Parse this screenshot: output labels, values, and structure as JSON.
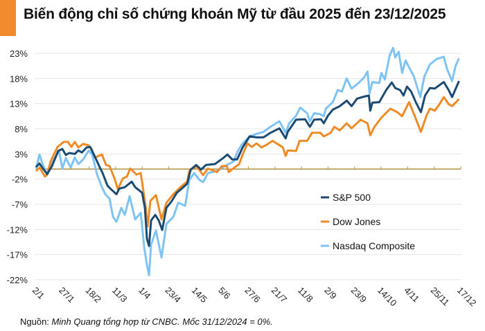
{
  "title": "Biến động chỉ số chứng khoán Mỹ từ đầu 2025 đến 23/12/2025",
  "source": {
    "prefix": "Nguồn: ",
    "text": "Minh Quang tổng hợp từ CNBC. Mốc 31/12/2024 = 0%."
  },
  "chart_data": {
    "type": "line",
    "title": "Biến động chỉ số chứng khoán Mỹ từ đầu 2025 đến 23/12/2025",
    "xlabel": "",
    "ylabel": "",
    "x_unit": "trading day index since 2/1/2025",
    "xlim": [
      0,
      245
    ],
    "ylim": [
      -22,
      23
    ],
    "yticks": [
      23,
      18,
      13,
      8,
      3,
      -2,
      -7,
      -12,
      -17,
      -22
    ],
    "ytick_labels": [
      "23%",
      "18%",
      "13%",
      "8%",
      "3%",
      "-2%",
      "-7%",
      "-12%",
      "-17%",
      "-22%"
    ],
    "xtick_labels": [
      "2/1",
      "27/1",
      "18/2",
      "11/3",
      "1/4",
      "23/4",
      "14/5",
      "5/6",
      "27/6",
      "21/7",
      "11/8",
      "2/9",
      "23/9",
      "14/10",
      "4/11",
      "25/11",
      "17/12"
    ],
    "baseline": 0,
    "grid": true,
    "legend_position": "right-middle",
    "series": [
      {
        "name": "Nasdaq Composite",
        "color": "#7DC3F5",
        "points": [
          [
            0,
            0.1
          ],
          [
            2,
            2.9
          ],
          [
            4,
            0.8
          ],
          [
            6.4,
            -1.2
          ],
          [
            10.4,
            1.9
          ],
          [
            13.2,
            3.7
          ],
          [
            15.2,
            0.1
          ],
          [
            17.2,
            2.2
          ],
          [
            20,
            0.3
          ],
          [
            22.4,
            2.3
          ],
          [
            24.4,
            1.0
          ],
          [
            27.2,
            1.9
          ],
          [
            30.4,
            3.7
          ],
          [
            32.4,
            2.9
          ],
          [
            35.2,
            -1.1
          ],
          [
            38,
            -3.6
          ],
          [
            40,
            -5.0
          ],
          [
            42.4,
            -5.9
          ],
          [
            44.4,
            -9.5
          ],
          [
            46.4,
            -10.5
          ],
          [
            49.2,
            -7.7
          ],
          [
            51.2,
            -9.1
          ],
          [
            54,
            -5.4
          ],
          [
            57.2,
            -10.0
          ],
          [
            60.4,
            -8.7
          ],
          [
            62.4,
            -15.5
          ],
          [
            64,
            -19.1
          ],
          [
            65.2,
            -21.1
          ],
          [
            66.4,
            -15.0
          ],
          [
            69.2,
            -12.2
          ],
          [
            72.4,
            -17.6
          ],
          [
            75.2,
            -10.9
          ],
          [
            79.2,
            -9.5
          ],
          [
            82,
            -6.7
          ],
          [
            86,
            -7.3
          ],
          [
            88.4,
            -2.2
          ],
          [
            91.2,
            -0.8
          ],
          [
            94.4,
            -2.2
          ],
          [
            96.4,
            -2.6
          ],
          [
            99.2,
            -0.8
          ],
          [
            104.4,
            -0.4
          ],
          [
            110,
            0.8
          ],
          [
            114,
            1.5
          ],
          [
            116.4,
            3.6
          ],
          [
            119.2,
            5.1
          ],
          [
            123.2,
            6.5
          ],
          [
            127.2,
            7.0
          ],
          [
            131.2,
            7.4
          ],
          [
            135.2,
            8.4
          ],
          [
            140.4,
            9.5
          ],
          [
            144,
            7.2
          ],
          [
            146,
            9.1
          ],
          [
            150,
            10.6
          ],
          [
            152.4,
            12.2
          ],
          [
            156.4,
            11.1
          ],
          [
            158,
            9.5
          ],
          [
            160.4,
            11.1
          ],
          [
            164,
            10.9
          ],
          [
            166,
            10.5
          ],
          [
            167.2,
            12.0
          ],
          [
            171.2,
            13.3
          ],
          [
            174,
            15.7
          ],
          [
            176.4,
            15.4
          ],
          [
            179.2,
            18.0
          ],
          [
            182,
            16.0
          ],
          [
            186,
            17.1
          ],
          [
            189.2,
            18.2
          ],
          [
            191.2,
            19.4
          ],
          [
            192.4,
            15.0
          ],
          [
            194,
            17.3
          ],
          [
            198,
            17.1
          ],
          [
            199.2,
            19.1
          ],
          [
            201.2,
            17.8
          ],
          [
            204,
            22.6
          ],
          [
            206,
            24.1
          ],
          [
            207.2,
            22.2
          ],
          [
            209.2,
            23.3
          ],
          [
            211.2,
            19.1
          ],
          [
            213.2,
            21.6
          ],
          [
            215.2,
            20.2
          ],
          [
            218,
            18.4
          ],
          [
            221.6,
            14.3
          ],
          [
            224,
            18.4
          ],
          [
            227.2,
            20.8
          ],
          [
            231.2,
            21.9
          ],
          [
            235.2,
            22.3
          ],
          [
            237.2,
            19.8
          ],
          [
            240,
            17.5
          ],
          [
            242,
            20.5
          ],
          [
            244,
            22.0
          ]
        ]
      },
      {
        "name": "Dow Jones",
        "color": "#F08A24",
        "points": [
          [
            0,
            -0.4
          ],
          [
            2,
            0.3
          ],
          [
            5.2,
            -1.5
          ],
          [
            6.4,
            -1.1
          ],
          [
            8.4,
            1.5
          ],
          [
            12.4,
            4.4
          ],
          [
            16,
            5.4
          ],
          [
            18.4,
            5.4
          ],
          [
            20.4,
            4.4
          ],
          [
            22.4,
            5.4
          ],
          [
            24.4,
            4.3
          ],
          [
            27.2,
            5.0
          ],
          [
            30.4,
            4.7
          ],
          [
            32,
            4.0
          ],
          [
            34,
            2.3
          ],
          [
            38,
            2.9
          ],
          [
            40.4,
            0.8
          ],
          [
            42.4,
            0.6
          ],
          [
            45.2,
            -1.8
          ],
          [
            47.2,
            -4.0
          ],
          [
            50,
            -1.9
          ],
          [
            52.4,
            -1.5
          ],
          [
            54.4,
            0.1
          ],
          [
            58,
            -1.1
          ],
          [
            60.4,
            -0.8
          ],
          [
            63.2,
            -7.3
          ],
          [
            64.4,
            -11.4
          ],
          [
            66,
            -6.3
          ],
          [
            69.2,
            -5.2
          ],
          [
            72.4,
            -10.0
          ],
          [
            75.2,
            -6.7
          ],
          [
            79.2,
            -5.0
          ],
          [
            83.2,
            -3.6
          ],
          [
            87.2,
            -2.5
          ],
          [
            88.4,
            -0.4
          ],
          [
            92.4,
            0.6
          ],
          [
            96.4,
            -1.2
          ],
          [
            99.2,
            0.1
          ],
          [
            104.4,
            -0.6
          ],
          [
            107.2,
            0.6
          ],
          [
            110,
            0.6
          ],
          [
            111.2,
            -0.6
          ],
          [
            114.4,
            0.3
          ],
          [
            117.2,
            1.0
          ],
          [
            119.2,
            2.9
          ],
          [
            122,
            5.1
          ],
          [
            124.4,
            4.4
          ],
          [
            127.2,
            5.1
          ],
          [
            130,
            4.3
          ],
          [
            132.4,
            4.7
          ],
          [
            136.4,
            5.6
          ],
          [
            139.2,
            5.0
          ],
          [
            142.4,
            4.3
          ],
          [
            144,
            2.6
          ],
          [
            145.2,
            3.7
          ],
          [
            150,
            3.6
          ],
          [
            152,
            5.6
          ],
          [
            156.4,
            5.6
          ],
          [
            159.2,
            7.2
          ],
          [
            164,
            7.2
          ],
          [
            166,
            6.5
          ],
          [
            170,
            7.2
          ],
          [
            172,
            8.4
          ],
          [
            175.2,
            7.7
          ],
          [
            179.2,
            9.1
          ],
          [
            182,
            8.1
          ],
          [
            187.2,
            9.8
          ],
          [
            191.2,
            9.1
          ],
          [
            192.8,
            6.7
          ],
          [
            195.2,
            8.4
          ],
          [
            199.2,
            10.2
          ],
          [
            204.4,
            12.0
          ],
          [
            208.4,
            11.3
          ],
          [
            211.2,
            10.5
          ],
          [
            215.2,
            13.3
          ],
          [
            218.4,
            10.6
          ],
          [
            222,
            7.4
          ],
          [
            225.2,
            10.6
          ],
          [
            227.2,
            12.0
          ],
          [
            230,
            11.6
          ],
          [
            232.4,
            12.7
          ],
          [
            235.2,
            14.3
          ],
          [
            238,
            12.9
          ],
          [
            240,
            12.5
          ],
          [
            244,
            13.9
          ]
        ]
      },
      {
        "name": "S&P 500",
        "color": "#1B4A72",
        "points": [
          [
            0,
            0.4
          ],
          [
            2,
            1.1
          ],
          [
            4,
            0.1
          ],
          [
            6.4,
            -1.0
          ],
          [
            9.2,
            0.6
          ],
          [
            12.8,
            3.6
          ],
          [
            15.2,
            4.0
          ],
          [
            17.2,
            2.8
          ],
          [
            19.2,
            3.2
          ],
          [
            22.4,
            3.0
          ],
          [
            24.4,
            3.7
          ],
          [
            26.4,
            3.3
          ],
          [
            29.2,
            4.3
          ],
          [
            31.2,
            4.4
          ],
          [
            33.2,
            3.0
          ],
          [
            36.4,
            0.6
          ],
          [
            38.4,
            -0.8
          ],
          [
            41.2,
            -3.3
          ],
          [
            43.2,
            -4.0
          ],
          [
            46.4,
            -5.0
          ],
          [
            48,
            -3.9
          ],
          [
            51.2,
            -3.6
          ],
          [
            55.2,
            -2.5
          ],
          [
            57.2,
            -3.6
          ],
          [
            61.2,
            -4.7
          ],
          [
            62.8,
            -7.7
          ],
          [
            64,
            -13.9
          ],
          [
            65.2,
            -15.3
          ],
          [
            66.4,
            -10.2
          ],
          [
            68.8,
            -9.1
          ],
          [
            70.8,
            -10.2
          ],
          [
            72.8,
            -12.1
          ],
          [
            75.2,
            -7.7
          ],
          [
            78.4,
            -6.3
          ],
          [
            81.2,
            -4.7
          ],
          [
            84,
            -3.9
          ],
          [
            87.2,
            -2.9
          ],
          [
            89.2,
            -0.1
          ],
          [
            92.4,
            0.8
          ],
          [
            95.2,
            -0.1
          ],
          [
            98,
            0.8
          ],
          [
            103.2,
            1.0
          ],
          [
            108.4,
            2.3
          ],
          [
            110.4,
            2.9
          ],
          [
            113.2,
            1.9
          ],
          [
            116,
            1.9
          ],
          [
            119.2,
            4.3
          ],
          [
            123.2,
            6.5
          ],
          [
            127.2,
            6.3
          ],
          [
            131.2,
            6.3
          ],
          [
            135.2,
            7.2
          ],
          [
            140.4,
            8.1
          ],
          [
            144,
            6.1
          ],
          [
            145.2,
            7.4
          ],
          [
            150,
            9.8
          ],
          [
            155.2,
            9.9
          ],
          [
            158,
            8.4
          ],
          [
            160.4,
            9.8
          ],
          [
            164.4,
            9.9
          ],
          [
            166,
            9.1
          ],
          [
            168.4,
            10.6
          ],
          [
            171.2,
            11.8
          ],
          [
            175.2,
            12.5
          ],
          [
            179.2,
            13.6
          ],
          [
            182,
            12.5
          ],
          [
            185.2,
            14.0
          ],
          [
            189.2,
            14.4
          ],
          [
            192,
            14.6
          ],
          [
            192.8,
            11.6
          ],
          [
            194,
            13.2
          ],
          [
            198,
            13.3
          ],
          [
            202,
            15.7
          ],
          [
            205.2,
            17.2
          ],
          [
            207.2,
            16.1
          ],
          [
            210,
            15.7
          ],
          [
            212,
            14.6
          ],
          [
            214,
            16.4
          ],
          [
            216.4,
            15.4
          ],
          [
            219.2,
            13.2
          ],
          [
            222,
            11.3
          ],
          [
            224.4,
            14.6
          ],
          [
            227.2,
            16.1
          ],
          [
            230,
            16.0
          ],
          [
            232.4,
            16.6
          ],
          [
            235.2,
            17.3
          ],
          [
            238,
            15.7
          ],
          [
            240,
            14.3
          ],
          [
            244,
            17.5
          ]
        ]
      }
    ],
    "legend": [
      "S&P 500",
      "Dow Jones",
      "Nasdaq Composite"
    ]
  }
}
